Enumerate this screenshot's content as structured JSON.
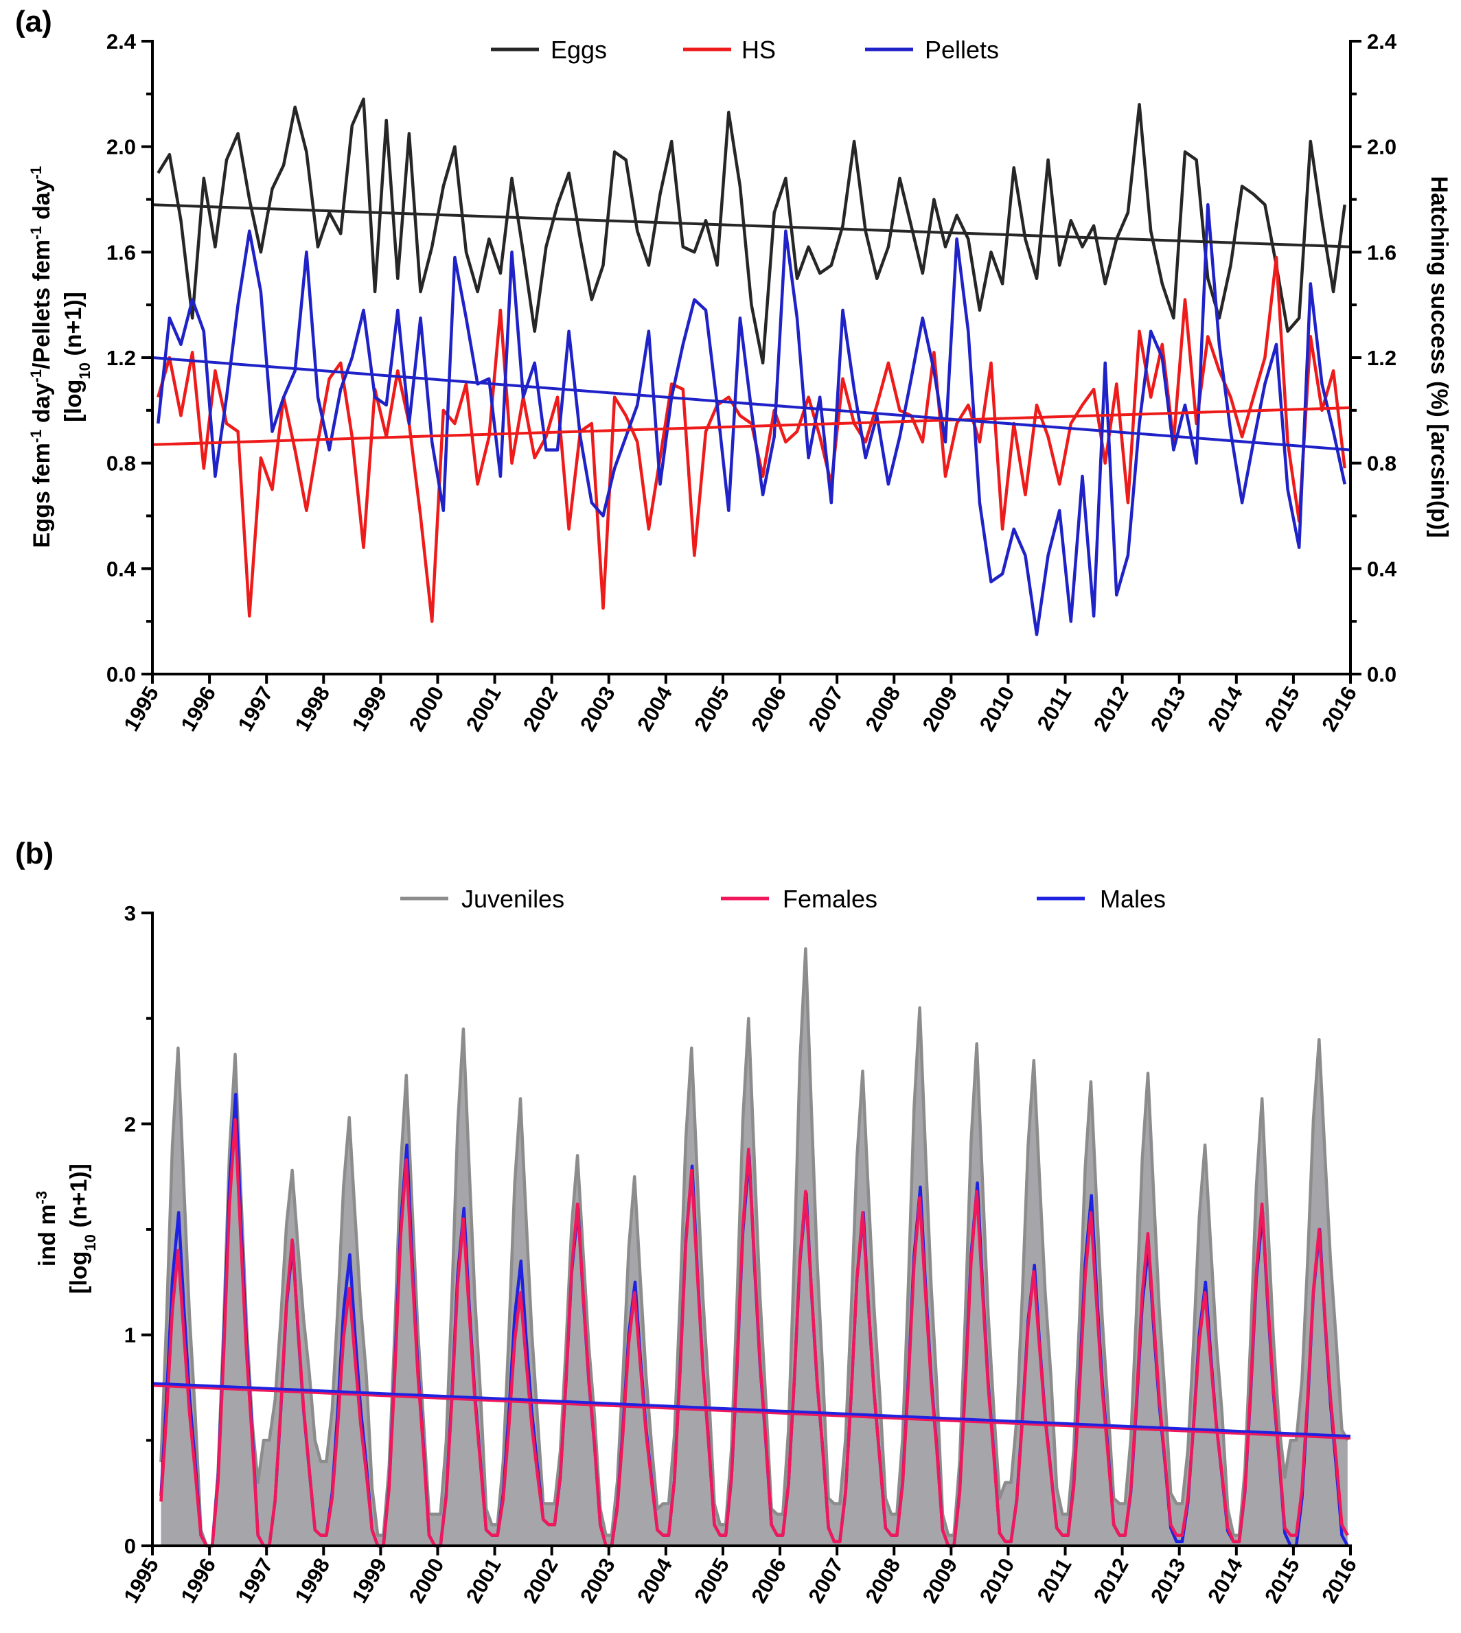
{
  "panels": [
    {
      "letter": "(a)",
      "legend": [
        "Eggs",
        "HS",
        "Pellets"
      ],
      "left_axis_title": {
        "line1": {
          "a": "Eggs fem",
          "b": "-1",
          "c": " day",
          "d": "-1",
          "e": "/Pellets fem",
          "f": "-1",
          "g": " day",
          "h": "-1"
        },
        "line2": {
          "a": "[log",
          "b": "10",
          "c": " (n+1)]"
        }
      },
      "right_axis_title": "Hatching success (%) [arcsin(p)]"
    },
    {
      "letter": "(b)",
      "legend": [
        "Juveniles",
        "Females",
        "Males"
      ],
      "left_axis_title": {
        "line1": {
          "a": "ind m",
          "b": "-3"
        },
        "line2": {
          "a": "[log",
          "b": "10",
          "c": " (n+1)]"
        }
      }
    }
  ],
  "chart_data": [
    {
      "type": "line",
      "x_tick_labels": [
        "1995",
        "1996",
        "1997",
        "1998",
        "1999",
        "2000",
        "2001",
        "2002",
        "2003",
        "2004",
        "2005",
        "2006",
        "2007",
        "2008",
        "2009",
        "2010",
        "2011",
        "2012",
        "2013",
        "2014",
        "2015",
        "2016"
      ],
      "xlim": [
        1995,
        2016
      ],
      "y_left_ticks": [
        "0.0",
        "0.4",
        "0.8",
        "1.2",
        "1.6",
        "2.0",
        "2.4"
      ],
      "y_right_ticks": [
        "0.0",
        "0.4",
        "0.8",
        "1.2",
        "1.6",
        "2.0",
        "2.4"
      ],
      "ylim": [
        0,
        2.4
      ],
      "legend_position": "top",
      "colors": {
        "Eggs": "#262626",
        "HS": "#ee1b1b",
        "Pellets": "#1f22c7"
      },
      "series": [
        {
          "name": "Eggs",
          "axis": "left",
          "x": [
            1995.1,
            1995.3,
            1995.5,
            1995.7,
            1995.9,
            1996.1,
            1996.3,
            1996.5,
            1996.7,
            1996.9,
            1997.1,
            1997.3,
            1997.5,
            1997.7,
            1997.9,
            1998.1,
            1998.3,
            1998.5,
            1998.7,
            1998.9,
            1999.1,
            1999.3,
            1999.5,
            1999.7,
            1999.9,
            2000.1,
            2000.3,
            2000.5,
            2000.7,
            2000.9,
            2001.1,
            2001.3,
            2001.5,
            2001.7,
            2001.9,
            2002.1,
            2002.3,
            2002.5,
            2002.7,
            2002.9,
            2003.1,
            2003.3,
            2003.5,
            2003.7,
            2003.9,
            2004.1,
            2004.3,
            2004.5,
            2004.7,
            2004.9,
            2005.1,
            2005.3,
            2005.5,
            2005.7,
            2005.9,
            2006.1,
            2006.3,
            2006.5,
            2006.7,
            2006.9,
            2007.1,
            2007.3,
            2007.5,
            2007.7,
            2007.9,
            2008.1,
            2008.3,
            2008.5,
            2008.7,
            2008.9,
            2009.1,
            2009.3,
            2009.5,
            2009.7,
            2009.9,
            2010.1,
            2010.3,
            2010.5,
            2010.7,
            2010.9,
            2011.1,
            2011.3,
            2011.5,
            2011.7,
            2011.9,
            2012.1,
            2012.3,
            2012.5,
            2012.7,
            2012.9,
            2013.1,
            2013.3,
            2013.5,
            2013.7,
            2013.9,
            2014.1,
            2014.3,
            2014.5,
            2014.7,
            2014.9,
            2015.1,
            2015.3,
            2015.5,
            2015.7,
            2015.9
          ],
          "values": [
            1.9,
            1.97,
            1.72,
            1.35,
            1.88,
            1.62,
            1.95,
            2.05,
            1.8,
            1.6,
            1.84,
            1.93,
            2.15,
            1.98,
            1.62,
            1.75,
            1.67,
            2.08,
            2.18,
            1.45,
            2.1,
            1.5,
            2.05,
            1.45,
            1.62,
            1.85,
            2.0,
            1.6,
            1.45,
            1.65,
            1.52,
            1.88,
            1.6,
            1.3,
            1.62,
            1.78,
            1.9,
            1.65,
            1.42,
            1.55,
            1.98,
            1.95,
            1.68,
            1.55,
            1.82,
            2.02,
            1.62,
            1.6,
            1.72,
            1.55,
            2.13,
            1.85,
            1.4,
            1.18,
            1.75,
            1.88,
            1.5,
            1.62,
            1.52,
            1.55,
            1.7,
            2.02,
            1.68,
            1.5,
            1.62,
            1.88,
            1.7,
            1.52,
            1.8,
            1.62,
            1.74,
            1.65,
            1.38,
            1.6,
            1.48,
            1.92,
            1.65,
            1.5,
            1.95,
            1.55,
            1.72,
            1.62,
            1.7,
            1.48,
            1.65,
            1.75,
            2.16,
            1.68,
            1.48,
            1.35,
            1.98,
            1.95,
            1.5,
            1.35,
            1.55,
            1.85,
            1.82,
            1.78,
            1.55,
            1.3,
            1.35,
            2.02,
            1.72,
            1.45,
            1.78
          ]
        },
        {
          "name": "HS",
          "axis": "right",
          "x": [
            1995.1,
            1995.3,
            1995.5,
            1995.7,
            1995.9,
            1996.1,
            1996.3,
            1996.5,
            1996.7,
            1996.9,
            1997.1,
            1997.3,
            1997.5,
            1997.7,
            1997.9,
            1998.1,
            1998.3,
            1998.5,
            1998.7,
            1998.9,
            1999.1,
            1999.3,
            1999.5,
            1999.7,
            1999.9,
            2000.1,
            2000.3,
            2000.5,
            2000.7,
            2000.9,
            2001.1,
            2001.3,
            2001.5,
            2001.7,
            2001.9,
            2002.1,
            2002.3,
            2002.5,
            2002.7,
            2002.9,
            2003.1,
            2003.3,
            2003.5,
            2003.7,
            2003.9,
            2004.1,
            2004.3,
            2004.5,
            2004.7,
            2004.9,
            2005.1,
            2005.3,
            2005.5,
            2005.7,
            2005.9,
            2006.1,
            2006.3,
            2006.5,
            2006.7,
            2006.9,
            2007.1,
            2007.3,
            2007.5,
            2007.7,
            2007.9,
            2008.1,
            2008.3,
            2008.5,
            2008.7,
            2008.9,
            2009.1,
            2009.3,
            2009.5,
            2009.7,
            2009.9,
            2010.1,
            2010.3,
            2010.5,
            2010.7,
            2010.9,
            2011.1,
            2011.3,
            2011.5,
            2011.7,
            2011.9,
            2012.1,
            2012.3,
            2012.5,
            2012.7,
            2012.9,
            2013.1,
            2013.3,
            2013.5,
            2013.7,
            2013.9,
            2014.1,
            2014.3,
            2014.5,
            2014.7,
            2014.9,
            2015.1,
            2015.3,
            2015.5,
            2015.7,
            2015.9
          ],
          "values": [
            1.05,
            1.2,
            0.98,
            1.22,
            0.78,
            1.15,
            0.95,
            0.92,
            0.22,
            0.82,
            0.7,
            1.05,
            0.85,
            0.62,
            0.88,
            1.12,
            1.18,
            0.9,
            0.48,
            1.08,
            0.9,
            1.15,
            0.95,
            0.6,
            0.2,
            1.0,
            0.95,
            1.1,
            0.72,
            0.9,
            1.38,
            0.8,
            1.05,
            0.82,
            0.9,
            1.05,
            0.55,
            0.92,
            0.95,
            0.25,
            1.05,
            0.98,
            0.88,
            0.55,
            0.82,
            1.1,
            1.08,
            0.45,
            0.92,
            1.02,
            1.05,
            0.98,
            0.95,
            0.75,
            1.0,
            0.88,
            0.92,
            1.05,
            0.9,
            0.72,
            1.12,
            0.95,
            0.88,
            1.02,
            1.18,
            1.0,
            0.98,
            0.88,
            1.22,
            0.75,
            0.95,
            1.02,
            0.88,
            1.18,
            0.55,
            0.95,
            0.68,
            1.02,
            0.9,
            0.72,
            0.95,
            1.02,
            1.08,
            0.8,
            1.1,
            0.65,
            1.3,
            1.05,
            1.25,
            0.88,
            1.42,
            0.95,
            1.28,
            1.15,
            1.05,
            0.9,
            1.05,
            1.2,
            1.58,
            0.88,
            0.58,
            1.28,
            1.0,
            1.15,
            0.78
          ]
        },
        {
          "name": "Pellets",
          "axis": "left",
          "x": [
            1995.1,
            1995.3,
            1995.5,
            1995.7,
            1995.9,
            1996.1,
            1996.3,
            1996.5,
            1996.7,
            1996.9,
            1997.1,
            1997.3,
            1997.5,
            1997.7,
            1997.9,
            1998.1,
            1998.3,
            1998.5,
            1998.7,
            1998.9,
            1999.1,
            1999.3,
            1999.5,
            1999.7,
            1999.9,
            2000.1,
            2000.3,
            2000.5,
            2000.7,
            2000.9,
            2001.1,
            2001.3,
            2001.5,
            2001.7,
            2001.9,
            2002.1,
            2002.3,
            2002.5,
            2002.7,
            2002.9,
            2003.1,
            2003.3,
            2003.5,
            2003.7,
            2003.9,
            2004.1,
            2004.3,
            2004.5,
            2004.7,
            2004.9,
            2005.1,
            2005.3,
            2005.5,
            2005.7,
            2005.9,
            2006.1,
            2006.3,
            2006.5,
            2006.7,
            2006.9,
            2007.1,
            2007.3,
            2007.5,
            2007.7,
            2007.9,
            2008.1,
            2008.3,
            2008.5,
            2008.7,
            2008.9,
            2009.1,
            2009.3,
            2009.5,
            2009.7,
            2009.9,
            2010.1,
            2010.3,
            2010.5,
            2010.7,
            2010.9,
            2011.1,
            2011.3,
            2011.5,
            2011.7,
            2011.9,
            2012.1,
            2012.3,
            2012.5,
            2012.7,
            2012.9,
            2013.1,
            2013.3,
            2013.5,
            2013.7,
            2013.9,
            2014.1,
            2014.3,
            2014.5,
            2014.7,
            2014.9,
            2015.1,
            2015.3,
            2015.5,
            2015.7,
            2015.9
          ],
          "values": [
            0.95,
            1.35,
            1.25,
            1.42,
            1.3,
            0.75,
            1.05,
            1.4,
            1.68,
            1.45,
            0.92,
            1.05,
            1.15,
            1.6,
            1.05,
            0.85,
            1.08,
            1.2,
            1.38,
            1.05,
            1.02,
            1.38,
            0.95,
            1.35,
            0.88,
            0.62,
            1.58,
            1.35,
            1.1,
            1.12,
            0.75,
            1.6,
            1.05,
            1.18,
            0.85,
            0.85,
            1.3,
            0.9,
            0.65,
            0.6,
            0.78,
            0.9,
            1.02,
            1.3,
            0.72,
            1.05,
            1.25,
            1.42,
            1.38,
            1.02,
            0.62,
            1.35,
            1.0,
            0.68,
            0.9,
            1.68,
            1.35,
            0.82,
            1.05,
            0.65,
            1.38,
            1.08,
            0.82,
            0.98,
            0.72,
            0.9,
            1.12,
            1.35,
            1.15,
            0.88,
            1.65,
            1.3,
            0.65,
            0.35,
            0.38,
            0.55,
            0.45,
            0.15,
            0.45,
            0.62,
            0.2,
            0.75,
            0.22,
            1.18,
            0.3,
            0.45,
            0.95,
            1.3,
            1.2,
            0.85,
            1.02,
            0.8,
            1.78,
            1.25,
            0.92,
            0.65,
            0.88,
            1.1,
            1.25,
            0.7,
            0.48,
            1.48,
            1.1,
            0.92,
            0.72
          ]
        },
        {
          "name": "",
          "kind": "trend",
          "color": "#262626",
          "x": [
            1995,
            2016
          ],
          "values": [
            1.78,
            1.62
          ]
        },
        {
          "name": "",
          "kind": "trend",
          "color": "#ee1b1b",
          "x": [
            1995,
            2016
          ],
          "values": [
            0.87,
            1.01
          ]
        },
        {
          "name": "",
          "kind": "trend",
          "color": "#1f22c7",
          "x": [
            1995,
            2016
          ],
          "values": [
            1.2,
            0.85
          ]
        }
      ]
    },
    {
      "type": "area",
      "x_tick_labels": [
        "1995",
        "1996",
        "1997",
        "1998",
        "1999",
        "2000",
        "2001",
        "2002",
        "2003",
        "2004",
        "2005",
        "2006",
        "2007",
        "2008",
        "2009",
        "2010",
        "2011",
        "2012",
        "2013",
        "2014",
        "2015",
        "2016"
      ],
      "xlim": [
        1995,
        2016
      ],
      "y_ticks": [
        "0",
        "1",
        "2",
        "3"
      ],
      "ylim": [
        0,
        3
      ],
      "legend_position": "top",
      "colors": {
        "Juveniles": "#8c8c8c",
        "Juveniles_fill": "#a6a6aa",
        "Females": "#f0185a",
        "Males": "#1f22e0"
      },
      "peak_years": [
        1995,
        1996,
        1997,
        1998,
        1999,
        2000,
        2001,
        2002,
        2003,
        2004,
        2005,
        2006,
        2007,
        2008,
        2009,
        2010,
        2011,
        2012,
        2013,
        2014,
        2015
      ],
      "series": [
        {
          "name": "Juveniles",
          "note": "seasonal series, annual summer peaks",
          "peak_values": [
            2.36,
            2.33,
            1.78,
            2.03,
            2.23,
            2.45,
            2.12,
            1.85,
            1.75,
            2.36,
            2.5,
            2.83,
            2.25,
            2.55,
            2.38,
            2.3,
            2.2,
            2.24,
            1.9,
            2.12,
            2.4
          ],
          "trough_values": [
            0.05,
            0.0,
            0.5,
            0.4,
            0.05,
            0.15,
            0.1,
            0.2,
            0.05,
            0.2,
            0.1,
            0.15,
            0.2,
            0.15,
            0.05,
            0.3,
            0.15,
            0.2,
            0.2,
            0.05,
            0.5
          ]
        },
        {
          "name": "Females",
          "note": "seasonal series, annual summer peaks",
          "peak_values": [
            1.4,
            2.02,
            1.45,
            1.22,
            1.83,
            1.55,
            1.2,
            1.62,
            1.2,
            1.78,
            1.88,
            1.68,
            1.58,
            1.65,
            1.68,
            1.3,
            1.58,
            1.48,
            1.2,
            1.62,
            1.5
          ],
          "trough_values": [
            0.0,
            0.0,
            0.0,
            0.05,
            0.0,
            0.0,
            0.05,
            0.1,
            0.0,
            0.05,
            0.05,
            0.05,
            0.02,
            0.05,
            0.0,
            0.02,
            0.05,
            0.05,
            0.05,
            0.02,
            0.05
          ]
        },
        {
          "name": "Males",
          "note": "seasonal series, annual summer peaks",
          "peak_values": [
            1.58,
            2.14,
            1.43,
            1.38,
            1.9,
            1.6,
            1.35,
            1.6,
            1.25,
            1.8,
            1.85,
            1.67,
            1.58,
            1.7,
            1.72,
            1.33,
            1.66,
            1.42,
            1.25,
            1.58,
            1.5
          ],
          "trough_values": [
            0.0,
            0.0,
            0.0,
            0.05,
            0.0,
            0.0,
            0.05,
            0.1,
            0.0,
            0.05,
            0.05,
            0.05,
            0.02,
            0.05,
            0.0,
            0.02,
            0.05,
            0.05,
            0.02,
            0.02,
            0.0
          ]
        },
        {
          "name": "",
          "kind": "trend",
          "color": "#f0185a",
          "x": [
            1995,
            2016
          ],
          "values": [
            0.76,
            0.51
          ]
        },
        {
          "name": "",
          "kind": "trend",
          "color": "#1f22e0",
          "x": [
            1995,
            2016
          ],
          "values": [
            0.77,
            0.52
          ]
        }
      ]
    }
  ]
}
